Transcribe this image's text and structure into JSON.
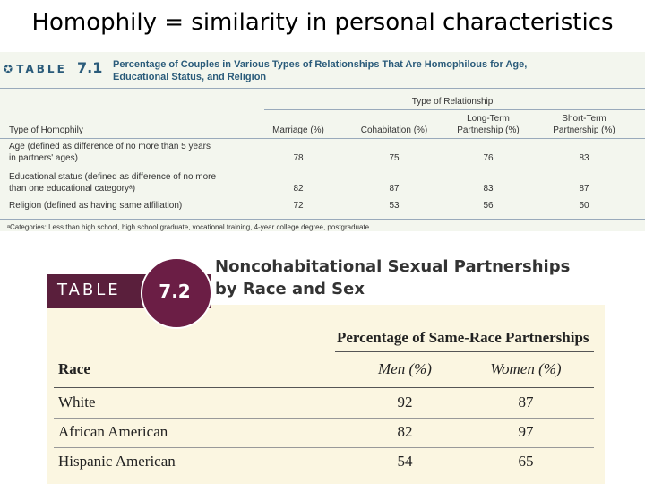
{
  "title": "Homophily = similarity in personal characteristics",
  "table1": {
    "label": "TABLE",
    "number": "7.1",
    "caption": [
      "Percentage of Couples in Various Types of Relationships That Are Homophilous for Age,",
      "Educational Status, and Religion"
    ],
    "group_header": "Type of Relationship",
    "headers": [
      "Type of Homophily",
      "Marriage (%)",
      "Cohabitation (%)",
      [
        "Long-Term",
        "Partnership (%)"
      ],
      [
        "Short-Term",
        "Partnership (%)"
      ]
    ],
    "rows": [
      [
        [
          "Age (defined as difference of no more than 5 years",
          "in partners' ages)"
        ],
        78,
        75,
        76,
        83
      ],
      [
        [
          "Educational status (defined as difference of no more",
          "than one educational categoryᵃ)"
        ],
        82,
        87,
        83,
        87
      ],
      [
        [
          "Religion (defined as having same affiliation)"
        ],
        72,
        53,
        56,
        50
      ]
    ],
    "footnote": "ᵃCategories: Less than high school, high school graduate, vocational training, 4-year college degree, postgraduate"
  },
  "table2": {
    "label": "TABLE",
    "number": "7.2",
    "caption": [
      "Noncohabitational Sexual Partnerships",
      "by Race and Sex"
    ],
    "group_header": "Percentage of Same-Race Partnerships",
    "headers": [
      "Race",
      "Men (%)",
      "Women (%)"
    ],
    "rows": [
      [
        "White",
        92,
        87
      ],
      [
        "African American",
        82,
        97
      ],
      [
        "Hispanic American",
        54,
        65
      ]
    ]
  }
}
